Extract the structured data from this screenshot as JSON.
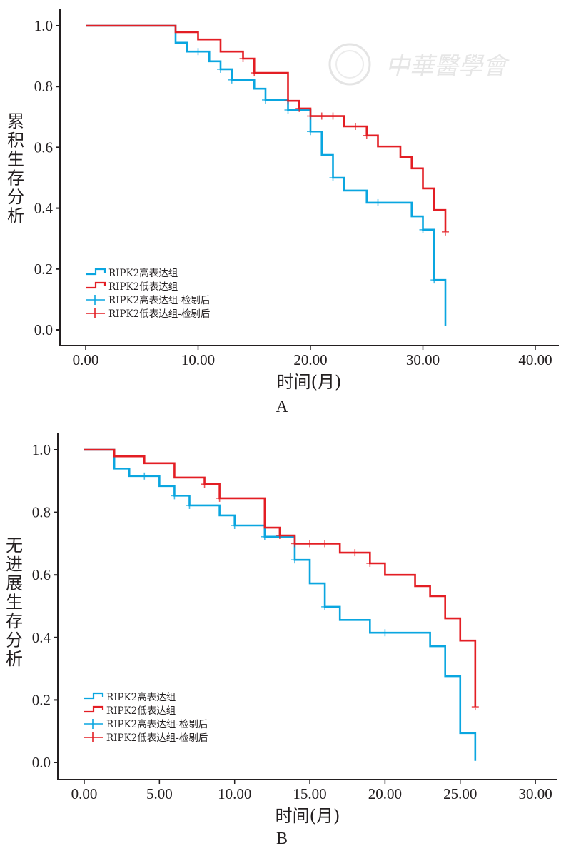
{
  "colors": {
    "high": "#0aa6e0",
    "low": "#e31e24",
    "axis": "#231f20",
    "watermark": "#e4e4e4"
  },
  "watermark": {
    "text": "中華醫學會"
  },
  "chart_data": [
    {
      "id": "A",
      "type": "line",
      "subtype": "kaplan-meier-step",
      "panel_label": "A",
      "title": "",
      "xlabel": "时间(月)",
      "ylabel": "累积生存分析",
      "xlim": [
        -2.3,
        42
      ],
      "ylim": [
        -0.06,
        1.06
      ],
      "xticks": [
        0,
        10,
        20,
        30,
        40
      ],
      "xtick_labels": [
        "0.00",
        "10.00",
        "20.00",
        "30.00",
        "40.00"
      ],
      "yticks": [
        0,
        0.2,
        0.4,
        0.6,
        0.8,
        1.0
      ],
      "ytick_labels": [
        "0.0",
        "0.2",
        "0.4",
        "0.6",
        "0.8",
        "1.0"
      ],
      "grid": false,
      "legend_position": "bottom-left",
      "legend": [
        {
          "label": "RIPK2高表达组",
          "kind": "step",
          "series": "high"
        },
        {
          "label": "RIPK2低表达组",
          "kind": "step",
          "series": "low"
        },
        {
          "label": "RIPK2高表达组-检剔后",
          "kind": "censor",
          "series": "high"
        },
        {
          "label": "RIPK2低表达组-检剔后",
          "kind": "censor",
          "series": "low"
        }
      ],
      "series": [
        {
          "name": "RIPK2高表达组",
          "key": "high",
          "steps": [
            [
              0,
              1.0
            ],
            [
              8,
              0.944
            ],
            [
              9,
              0.915
            ],
            [
              11,
              0.883
            ],
            [
              12,
              0.857
            ],
            [
              13,
              0.822
            ],
            [
              15,
              0.793
            ],
            [
              16,
              0.756
            ],
            [
              18,
              0.723
            ],
            [
              20,
              0.652
            ],
            [
              21,
              0.575
            ],
            [
              22,
              0.5
            ],
            [
              23,
              0.458
            ],
            [
              25,
              0.418
            ],
            [
              29,
              0.373
            ],
            [
              30,
              0.329
            ],
            [
              31,
              0.164
            ],
            [
              32,
              0.012
            ]
          ],
          "end_x": 32,
          "censored": [
            [
              10,
              0.915
            ],
            [
              12,
              0.857
            ],
            [
              13,
              0.822
            ],
            [
              16,
              0.756
            ],
            [
              18,
              0.723
            ],
            [
              20,
              0.652
            ],
            [
              22,
              0.5
            ],
            [
              26,
              0.418
            ],
            [
              30,
              0.329
            ],
            [
              31,
              0.164
            ]
          ]
        },
        {
          "name": "RIPK2低表达组",
          "key": "low",
          "steps": [
            [
              0,
              1.0
            ],
            [
              8,
              0.979
            ],
            [
              10,
              0.955
            ],
            [
              12,
              0.915
            ],
            [
              14,
              0.892
            ],
            [
              15,
              0.845
            ],
            [
              18,
              0.753
            ],
            [
              19,
              0.728
            ],
            [
              20,
              0.703
            ],
            [
              23,
              0.669
            ],
            [
              25,
              0.639
            ],
            [
              26,
              0.603
            ],
            [
              28,
              0.568
            ],
            [
              29,
              0.531
            ],
            [
              30,
              0.465
            ],
            [
              31,
              0.394
            ],
            [
              32,
              0.322
            ]
          ],
          "end_x": 32,
          "censored": [
            [
              14,
              0.892
            ],
            [
              15,
              0.845
            ],
            [
              18,
              0.753
            ],
            [
              19,
              0.728
            ],
            [
              20,
              0.703
            ],
            [
              21,
              0.703
            ],
            [
              22,
              0.703
            ],
            [
              24,
              0.669
            ],
            [
              25,
              0.639
            ],
            [
              32,
              0.322
            ]
          ]
        }
      ]
    },
    {
      "id": "B",
      "type": "line",
      "subtype": "kaplan-meier-step",
      "panel_label": "B",
      "title": "",
      "xlabel": "时间(月)",
      "ylabel": "无进展生存分析",
      "xlim": [
        -1.8,
        31.6
      ],
      "ylim": [
        -0.06,
        1.06
      ],
      "xticks": [
        0,
        5,
        10,
        15,
        20,
        25,
        30
      ],
      "xtick_labels": [
        "0.00",
        "5.00",
        "10.00",
        "15.00",
        "20.00",
        "25.00",
        "30.00"
      ],
      "yticks": [
        0,
        0.2,
        0.4,
        0.6,
        0.8,
        1.0
      ],
      "ytick_labels": [
        "0.0",
        "0.2",
        "0.4",
        "0.6",
        "0.8",
        "1.0"
      ],
      "grid": false,
      "legend_position": "bottom-left",
      "legend": [
        {
          "label": "RIPK2高表达组",
          "kind": "step",
          "series": "high"
        },
        {
          "label": "RIPK2低表达组",
          "kind": "step",
          "series": "low"
        },
        {
          "label": "RIPK2高表达组-检剔后",
          "kind": "censor",
          "series": "high"
        },
        {
          "label": "RIPK2低表达组-检剔后",
          "kind": "censor",
          "series": "low"
        }
      ],
      "series": [
        {
          "name": "RIPK2高表达组",
          "key": "high",
          "steps": [
            [
              0,
              1.0
            ],
            [
              2,
              0.94
            ],
            [
              3,
              0.916
            ],
            [
              5,
              0.884
            ],
            [
              6,
              0.853
            ],
            [
              7,
              0.822
            ],
            [
              9,
              0.79
            ],
            [
              10,
              0.758
            ],
            [
              12,
              0.722
            ],
            [
              14,
              0.648
            ],
            [
              15,
              0.573
            ],
            [
              16,
              0.498
            ],
            [
              17,
              0.456
            ],
            [
              19,
              0.415
            ],
            [
              23,
              0.372
            ],
            [
              24,
              0.276
            ],
            [
              25,
              0.094
            ],
            [
              26,
              0.005
            ]
          ],
          "end_x": 26,
          "censored": [
            [
              4,
              0.916
            ],
            [
              6,
              0.853
            ],
            [
              7,
              0.822
            ],
            [
              10,
              0.758
            ],
            [
              12,
              0.722
            ],
            [
              14,
              0.648
            ],
            [
              16,
              0.498
            ],
            [
              20,
              0.415
            ]
          ]
        },
        {
          "name": "RIPK2低表达组",
          "key": "low",
          "steps": [
            [
              0,
              1.0
            ],
            [
              2,
              0.979
            ],
            [
              4,
              0.957
            ],
            [
              6,
              0.911
            ],
            [
              8,
              0.89
            ],
            [
              9,
              0.845
            ],
            [
              12,
              0.751
            ],
            [
              13,
              0.726
            ],
            [
              14,
              0.7
            ],
            [
              17,
              0.671
            ],
            [
              19,
              0.637
            ],
            [
              20,
              0.6
            ],
            [
              22,
              0.564
            ],
            [
              23,
              0.532
            ],
            [
              24,
              0.461
            ],
            [
              25,
              0.39
            ],
            [
              26,
              0.178
            ]
          ],
          "end_x": 26,
          "censored": [
            [
              8,
              0.89
            ],
            [
              9,
              0.845
            ],
            [
              13,
              0.726
            ],
            [
              14,
              0.7
            ],
            [
              15,
              0.7
            ],
            [
              16,
              0.7
            ],
            [
              18,
              0.671
            ],
            [
              19,
              0.637
            ],
            [
              26,
              0.178
            ]
          ]
        }
      ]
    }
  ]
}
